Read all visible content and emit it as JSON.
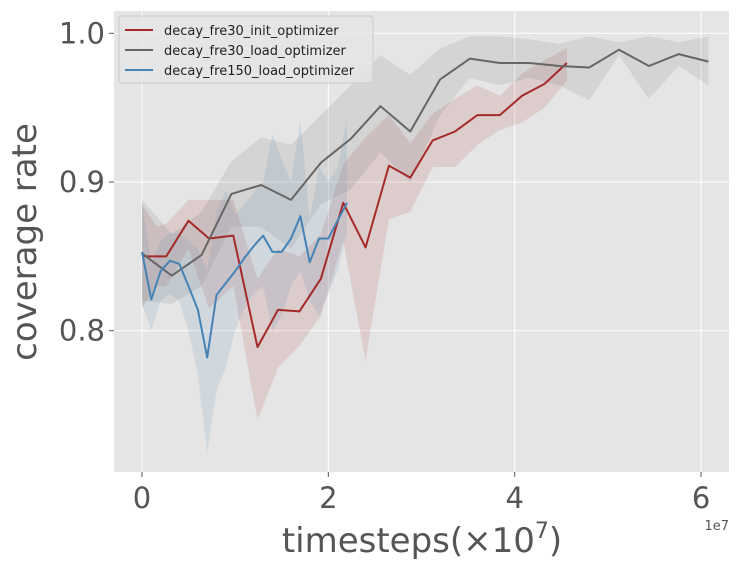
{
  "chart_data": {
    "type": "line",
    "title": "",
    "xlabel": "timesteps(×10⁷)",
    "xlabel_base": "timesteps(×10",
    "xlabel_sup": "7",
    "xlabel_end": ")",
    "ylabel": "coverage rate",
    "x_offset_text": "1e7",
    "x_scale_factor": 10000000,
    "xlim": [
      -3000000,
      63000000
    ],
    "ylim": [
      0.705,
      1.015
    ],
    "xticks": [
      0,
      20000000,
      40000000,
      60000000
    ],
    "xtick_labels": [
      "0",
      "2",
      "4",
      "6"
    ],
    "yticks": [
      0.8,
      0.9,
      1.0
    ],
    "ytick_labels": [
      "0.8",
      "0.9",
      "1.0"
    ],
    "grid": true,
    "legend_position": "top-left",
    "series": [
      {
        "name": "decay_fre30_init_optimizer",
        "color": "#a52a2a",
        "x": [
          0,
          1600000,
          2600000,
          5000000,
          7200000,
          9800000,
          12400000,
          14600000,
          16900000,
          19200000,
          21600000,
          24000000,
          26500000,
          28800000,
          31200000,
          33600000,
          36000000,
          38400000,
          40800000,
          43200000,
          45600000
        ],
        "y": [
          0.85,
          0.85,
          0.85,
          0.874,
          0.862,
          0.864,
          0.789,
          0.814,
          0.813,
          0.835,
          0.886,
          0.856,
          0.911,
          0.903,
          0.928,
          0.934,
          0.945,
          0.945,
          0.958,
          0.966,
          0.98
        ],
        "lower": [
          0.815,
          0.83,
          0.83,
          0.855,
          0.815,
          0.83,
          0.74,
          0.775,
          0.79,
          0.81,
          0.86,
          0.78,
          0.875,
          0.88,
          0.91,
          0.91,
          0.925,
          0.935,
          0.94,
          0.95,
          0.968
        ],
        "upper": [
          0.885,
          0.87,
          0.872,
          0.888,
          0.888,
          0.888,
          0.835,
          0.855,
          0.85,
          0.865,
          0.912,
          0.93,
          0.945,
          0.926,
          0.946,
          0.956,
          0.965,
          0.958,
          0.973,
          0.982,
          0.99
        ]
      },
      {
        "name": "decay_fre30_load_optimizer",
        "color": "#666666",
        "x": [
          0,
          3200000,
          6400000,
          9600000,
          12800000,
          16000000,
          19200000,
          22400000,
          25600000,
          28800000,
          32000000,
          35200000,
          38400000,
          41600000,
          44800000,
          48000000,
          51200000,
          54400000,
          57600000,
          60800000
        ],
        "y": [
          0.852,
          0.837,
          0.851,
          0.892,
          0.898,
          0.888,
          0.913,
          0.929,
          0.951,
          0.934,
          0.969,
          0.983,
          0.98,
          0.98,
          0.978,
          0.977,
          0.989,
          0.978,
          0.986,
          0.981
        ],
        "lower": [
          0.82,
          0.818,
          0.83,
          0.87,
          0.87,
          0.855,
          0.885,
          0.895,
          0.92,
          0.9,
          0.945,
          0.97,
          0.965,
          0.97,
          0.965,
          0.955,
          0.985,
          0.956,
          0.978,
          0.965
        ],
        "upper": [
          0.888,
          0.865,
          0.88,
          0.914,
          0.93,
          0.925,
          0.945,
          0.965,
          0.985,
          0.972,
          0.99,
          0.998,
          0.998,
          0.996,
          0.993,
          0.998,
          0.994,
          0.998,
          0.994,
          0.998
        ]
      },
      {
        "name": "decay_fre150_load_optimizer",
        "color": "#4682b4",
        "x": [
          0,
          1000000,
          2000000,
          3000000,
          4000000,
          5000000,
          6000000,
          7000000,
          8000000,
          9000000,
          10000000,
          11000000,
          12000000,
          13000000,
          14000000,
          15000000,
          16000000,
          17000000,
          18000000,
          19000000,
          20000000,
          21000000,
          22000000
        ],
        "y": [
          0.853,
          0.821,
          0.84,
          0.847,
          0.845,
          0.83,
          0.814,
          0.782,
          0.824,
          0.832,
          0.84,
          0.849,
          0.857,
          0.864,
          0.853,
          0.853,
          0.862,
          0.877,
          0.846,
          0.862,
          0.862,
          0.874,
          0.886
        ],
        "lower": [
          0.818,
          0.8,
          0.82,
          0.825,
          0.82,
          0.8,
          0.77,
          0.718,
          0.76,
          0.775,
          0.8,
          0.815,
          0.825,
          0.83,
          0.8,
          0.81,
          0.83,
          0.84,
          0.82,
          0.81,
          0.825,
          0.84,
          0.866
        ],
        "upper": [
          0.888,
          0.845,
          0.86,
          0.866,
          0.866,
          0.86,
          0.855,
          0.84,
          0.88,
          0.895,
          0.878,
          0.885,
          0.893,
          0.9,
          0.932,
          0.915,
          0.9,
          0.942,
          0.875,
          0.91,
          0.9,
          0.91,
          0.942
        ]
      }
    ]
  }
}
